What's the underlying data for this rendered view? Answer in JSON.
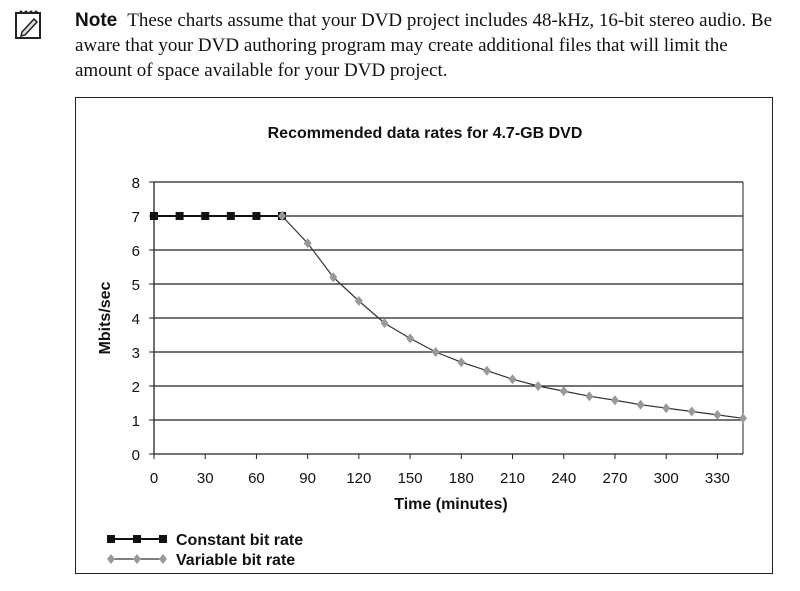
{
  "note": {
    "label": "Note",
    "text": "These charts assume that your DVD project includes 48-kHz, 16-bit stereo audio. Be aware that your DVD authoring program may create additional files that will limit the amount of space available for your DVD project.",
    "icon": "note-pencil-icon"
  },
  "chart_data": {
    "type": "line",
    "title": "Recommended data rates for 4.7-GB DVD",
    "xlabel": "Time (minutes)",
    "ylabel": "Mbits/sec",
    "xlim": [
      0,
      345
    ],
    "ylim": [
      0,
      8
    ],
    "x_ticks": [
      0,
      30,
      60,
      90,
      120,
      150,
      180,
      210,
      240,
      270,
      300,
      330
    ],
    "y_ticks": [
      0,
      1,
      2,
      3,
      4,
      5,
      6,
      7,
      8
    ],
    "grid": "horizontal",
    "legend_position": "bottom-left",
    "series": [
      {
        "name": "Constant bit rate",
        "color": "#111111",
        "marker": "square",
        "x": [
          0,
          15,
          30,
          45,
          60,
          75
        ],
        "y": [
          7,
          7,
          7,
          7,
          7,
          7
        ]
      },
      {
        "name": "Variable bit rate",
        "color": "#333333",
        "marker_color": "#999999",
        "marker": "diamond",
        "x": [
          75,
          90,
          105,
          120,
          135,
          150,
          165,
          180,
          195,
          210,
          225,
          240,
          255,
          270,
          285,
          300,
          315,
          330,
          345
        ],
        "y": [
          7.0,
          6.2,
          5.2,
          4.5,
          3.85,
          3.4,
          3.0,
          2.7,
          2.45,
          2.2,
          2.0,
          1.85,
          1.7,
          1.58,
          1.45,
          1.35,
          1.25,
          1.15,
          1.05
        ]
      }
    ]
  }
}
